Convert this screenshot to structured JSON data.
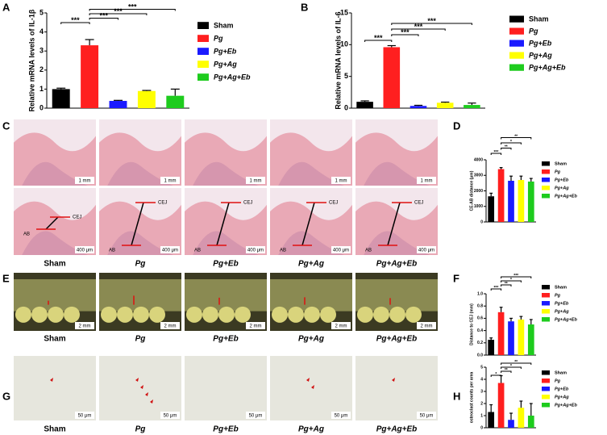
{
  "figure": {
    "panel_letters": [
      "A",
      "B",
      "C",
      "D",
      "E",
      "F",
      "G",
      "H"
    ],
    "groups": [
      "Sham",
      "Pg",
      "Pg+Eb",
      "Pg+Ag",
      "Pg+Ag+Eb"
    ],
    "scale_bars": [
      "1 mm",
      "400 μm",
      "2 mm",
      "50 μm"
    ],
    "landmarks": [
      "CEJ",
      "AB"
    ]
  },
  "chart_data": [
    {
      "type": "bar",
      "ylabel": "Relative mRNA levels of IL-1β",
      "categories": [
        "Sham",
        "Pg",
        "Pg+Eb",
        "Pg+Ag",
        "Pg+Ag+Eb"
      ],
      "colors": [
        "#000000",
        "#ff1f1f",
        "#1a1aff",
        "#ffff00",
        "#1ecc1e"
      ],
      "values": [
        1.0,
        3.3,
        0.38,
        0.9,
        0.65
      ],
      "errors": [
        0.05,
        0.3,
        0.03,
        0.03,
        0.35
      ],
      "ylim": [
        0,
        5
      ],
      "yticks": [
        0,
        1,
        2,
        3,
        4,
        5
      ],
      "significance": [
        {
          "pair": [
            "Sham",
            "Pg"
          ],
          "label": "***"
        },
        {
          "pair": [
            "Pg",
            "Pg+Eb"
          ],
          "label": "***"
        },
        {
          "pair": [
            "Pg",
            "Pg+Ag"
          ],
          "label": "***"
        },
        {
          "pair": [
            "Pg",
            "Pg+Ag+Eb"
          ],
          "label": "***"
        }
      ]
    },
    {
      "type": "bar",
      "ylabel": "Relative mRNA levels of IL-6",
      "categories": [
        "Sham",
        "Pg",
        "Pg+Eb",
        "Pg+Ag",
        "Pg+Ag+Eb"
      ],
      "colors": [
        "#000000",
        "#ff1f1f",
        "#1a1aff",
        "#ffff00",
        "#1ecc1e"
      ],
      "values": [
        1.0,
        9.6,
        0.35,
        0.85,
        0.5
      ],
      "errors": [
        0.15,
        0.25,
        0.1,
        0.1,
        0.3
      ],
      "ylim": [
        0,
        15
      ],
      "yticks": [
        0,
        5,
        10,
        15
      ],
      "significance": [
        {
          "pair": [
            "Sham",
            "Pg"
          ],
          "label": "***"
        },
        {
          "pair": [
            "Pg",
            "Pg+Eb"
          ],
          "label": "***"
        },
        {
          "pair": [
            "Pg",
            "Pg+Ag"
          ],
          "label": "***"
        },
        {
          "pair": [
            "Pg",
            "Pg+Ag+Eb"
          ],
          "label": "***"
        }
      ]
    },
    {
      "type": "bar",
      "ylabel": "CE-AB distance (μm)",
      "categories": [
        "Sham",
        "Pg",
        "Pg+Eb",
        "Pg+Ag",
        "Pg+Ag+Eb"
      ],
      "colors": [
        "#000000",
        "#ff1f1f",
        "#1a1aff",
        "#ffff00",
        "#1ecc1e"
      ],
      "values": [
        1650,
        3400,
        2650,
        2700,
        2600
      ],
      "errors": [
        200,
        100,
        300,
        250,
        200
      ],
      "ylim": [
        0,
        4000
      ],
      "yticks": [
        0,
        1000,
        2000,
        3000,
        4000
      ],
      "significance": [
        {
          "pair": [
            "Sham",
            "Pg"
          ],
          "label": "***"
        },
        {
          "pair": [
            "Pg",
            "Pg+Eb"
          ],
          "label": "**"
        },
        {
          "pair": [
            "Pg",
            "Pg+Ag"
          ],
          "label": "*"
        },
        {
          "pair": [
            "Pg",
            "Pg+Ag+Eb"
          ],
          "label": "**"
        }
      ]
    },
    {
      "type": "bar",
      "ylabel": "Distance to CEJ (mm)",
      "categories": [
        "Sham",
        "Pg",
        "Pg+Eb",
        "Pg+Ag",
        "Pg+Ag+Eb"
      ],
      "colors": [
        "#000000",
        "#ff1f1f",
        "#1a1aff",
        "#ffff00",
        "#1ecc1e"
      ],
      "values": [
        0.25,
        0.7,
        0.55,
        0.58,
        0.5
      ],
      "errors": [
        0.03,
        0.08,
        0.05,
        0.05,
        0.08
      ],
      "ylim": [
        0,
        1
      ],
      "yticks": [
        {
          "value": 0,
          "label": "0.0"
        },
        0.2,
        0.4,
        0.6,
        0.8,
        {
          "value": 1,
          "label": "1.0"
        }
      ],
      "significance": [
        {
          "pair": [
            "Sham",
            "Pg"
          ],
          "label": "***"
        },
        {
          "pair": [
            "Pg",
            "Pg+Eb"
          ],
          "label": "**"
        },
        {
          "pair": [
            "Pg",
            "Pg+Ag"
          ],
          "label": "*"
        },
        {
          "pair": [
            "Pg",
            "Pg+Ag+Eb"
          ],
          "label": "***"
        }
      ]
    },
    {
      "type": "bar",
      "ylabel": "osteoclast counts per area",
      "categories": [
        "Sham",
        "Pg",
        "Pg+Eb",
        "Pg+Ag",
        "Pg+Ag+Eb"
      ],
      "colors": [
        "#000000",
        "#ff1f1f",
        "#1a1aff",
        "#ffff00",
        "#1ecc1e"
      ],
      "values": [
        1.3,
        3.7,
        0.65,
        1.65,
        1.0
      ],
      "errors": [
        0.6,
        0.6,
        0.55,
        0.55,
        1.0
      ],
      "ylim": [
        0,
        5
      ],
      "yticks": [
        0,
        1,
        2,
        3,
        4,
        5
      ],
      "significance": [
        {
          "pair": [
            "Sham",
            "Pg"
          ],
          "label": "*"
        },
        {
          "pair": [
            "Pg",
            "Pg+Eb"
          ],
          "label": "**"
        },
        {
          "pair": [
            "Pg",
            "Pg+Ag"
          ],
          "label": "*"
        },
        {
          "pair": [
            "Pg",
            "Pg+Ag+Eb"
          ],
          "label": "**"
        }
      ]
    }
  ]
}
